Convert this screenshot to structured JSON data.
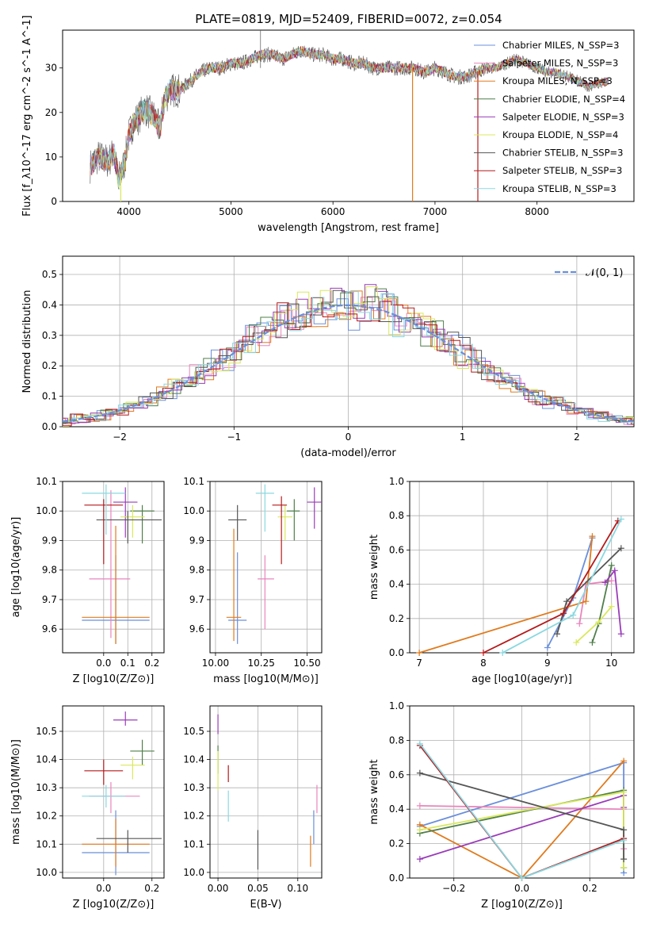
{
  "colors": [
    "#6a8fdc",
    "#e986bd",
    "#e07b1e",
    "#4f7f4a",
    "#9a3cb8",
    "#d9e85c",
    "#565656",
    "#b5191a",
    "#8ad8e0"
  ],
  "chart_data": [
    {
      "id": "spectrum",
      "type": "line",
      "title": "PLATE=0819, MJD=52409, FIBERID=0072, z=0.054",
      "xlabel": "wavelength [Angstrom, rest frame]",
      "ylabel": "Flux [f_λ10^-17 erg cm^-2 s^-1 A^-1]",
      "xlim": [
        3350,
        8950
      ],
      "ylim": [
        0,
        38.5
      ],
      "xticks": [
        "4000",
        "5000",
        "6000",
        "7000",
        "8000"
      ],
      "yticks": [
        "0",
        "10",
        "20",
        "30"
      ],
      "grid": false,
      "legend_position": "top-right",
      "legend": [
        "Chabrier MILES, N_SSP=3",
        "Salpeter MILES, N_SSP=3",
        "Kroupa MILES, N_SSP=3",
        "Chabrier ELODIE, N_SSP=4",
        "Salpeter ELODIE, N_SSP=3",
        "Kroupa ELODIE, N_SSP=4",
        "Chabrier STELIB, N_SSP=3",
        "Salpeter STELIB, N_SSP=3",
        "Kroupa STELIB, N_SSP=3"
      ],
      "envelope": {
        "x": [
          3620,
          3700,
          3800,
          3850,
          3900,
          3930,
          3960,
          4000,
          4050,
          4100,
          4150,
          4200,
          4250,
          4300,
          4350,
          4400,
          4500,
          4600,
          4700,
          4800,
          4900,
          5000,
          5100,
          5200,
          5300,
          5400,
          5500,
          5600,
          5700,
          5800,
          5900,
          6000,
          6100,
          6200,
          6300,
          6400,
          6500,
          6600,
          6700,
          6800,
          6900,
          7000,
          7100,
          7200,
          7300,
          7400,
          7500,
          7600,
          7700,
          7800,
          7900,
          8000,
          8100,
          8200,
          8300,
          8400,
          8500,
          8700
        ],
        "y": [
          8,
          10,
          9,
          11,
          5,
          7,
          9,
          15,
          18,
          19,
          21,
          20,
          19,
          16,
          23,
          25,
          25,
          27,
          29,
          30,
          30,
          31,
          31,
          32,
          33,
          33,
          32,
          33,
          34,
          33,
          33,
          32,
          32,
          31,
          31,
          30,
          30,
          30,
          30,
          30,
          29,
          30,
          29,
          28,
          28,
          29,
          30,
          30,
          31,
          32,
          31,
          30,
          29,
          29,
          28,
          27,
          26,
          27
        ]
      },
      "spikes": [
        {
          "x": 3920,
          "y_min": 0
        },
        {
          "x": 6780,
          "y_min": 0
        },
        {
          "x": 7420,
          "y_min": 0
        }
      ],
      "fluxes": {
        "range": [
          3620,
          8700
        ]
      }
    },
    {
      "id": "residuals",
      "type": "line",
      "xlabel": "(data-model)/error",
      "ylabel": "Normed distribution",
      "xlim": [
        -2.5,
        2.5
      ],
      "ylim": [
        0,
        0.56
      ],
      "xticks": [
        "−2",
        "−1",
        "0",
        "1",
        "2"
      ],
      "yticks": [
        "0.0",
        "0.1",
        "0.2",
        "0.3",
        "0.4",
        "0.5"
      ],
      "grid": true,
      "legend_position": "top-right",
      "legend": [
        "𝒩(0, 1)"
      ],
      "reference_curve": "normal(0,1)",
      "bin_width": 0.1
    },
    {
      "id": "age_vs_Z",
      "type": "scatter",
      "xlabel": "Z [log10(Z/Z⊙)]",
      "ylabel": "age [log10(age/yr)]",
      "xlim": [
        -0.17,
        0.25
      ],
      "ylim": [
        9.52,
        10.1
      ],
      "xticks": [
        "0.0",
        "0.1",
        "0.2"
      ],
      "yticks": [
        "9.6",
        "9.7",
        "9.8",
        "9.9",
        "10.0",
        "10.1"
      ],
      "grid": true,
      "points": [
        {
          "x": 0.05,
          "y": 9.63,
          "xerr": [
            0.14,
            0.14
          ],
          "yerr": [
            0.08,
            0.22
          ]
        },
        {
          "x": 0.03,
          "y": 9.77,
          "xerr": [
            0.09,
            0.08
          ],
          "yerr": [
            0.2,
            0.3
          ]
        },
        {
          "x": 0.05,
          "y": 9.64,
          "xerr": [
            0.14,
            0.14
          ],
          "yerr": [
            0.09,
            0.31
          ]
        },
        {
          "x": 0.16,
          "y": 10.0,
          "xerr": [
            0.05,
            0.05
          ],
          "yerr": [
            0.11,
            0.02
          ]
        },
        {
          "x": 0.09,
          "y": 10.03,
          "xerr": [
            0.05,
            0.05
          ],
          "yerr": [
            0.12,
            0.05
          ]
        },
        {
          "x": 0.12,
          "y": 9.98,
          "xerr": [
            0.05,
            0.05
          ],
          "yerr": [
            0.07,
            0.04
          ]
        },
        {
          "x": 0.1,
          "y": 9.97,
          "xerr": [
            0.13,
            0.14
          ],
          "yerr": [
            0.08,
            0.03
          ]
        },
        {
          "x": 0.0,
          "y": 10.02,
          "xerr": [
            0.08,
            0.08
          ],
          "yerr": [
            0.2,
            0.02
          ]
        },
        {
          "x": 0.01,
          "y": 10.06,
          "xerr": [
            0.1,
            0.08
          ],
          "yerr": [
            0.14,
            0.03
          ]
        }
      ]
    },
    {
      "id": "age_vs_mass",
      "type": "scatter",
      "xlabel": "mass [log10(M/M⊙)]",
      "ylabel": "",
      "xlim": [
        9.97,
        10.58
      ],
      "ylim": [
        9.52,
        10.1
      ],
      "xticks": [
        "10.00",
        "10.25",
        "10.50"
      ],
      "yticks": [
        "9.6",
        "9.7",
        "9.8",
        "9.9",
        "10.0",
        "10.1"
      ],
      "grid": true,
      "points": [
        {
          "x": 10.12,
          "y": 9.63,
          "xerr": [
            0.05,
            0.05
          ],
          "yerr": [
            0.08,
            0.23
          ]
        },
        {
          "x": 10.27,
          "y": 9.77,
          "xerr": [
            0.04,
            0.05
          ],
          "yerr": [
            0.17,
            0.08
          ]
        },
        {
          "x": 10.1,
          "y": 9.64,
          "xerr": [
            0.04,
            0.04
          ],
          "yerr": [
            0.08,
            0.3
          ]
        },
        {
          "x": 10.43,
          "y": 10.0,
          "xerr": [
            0.04,
            0.03
          ],
          "yerr": [
            0.1,
            0.04
          ]
        },
        {
          "x": 10.54,
          "y": 10.03,
          "xerr": [
            0.04,
            0.04
          ],
          "yerr": [
            0.09,
            0.05
          ]
        },
        {
          "x": 10.38,
          "y": 9.98,
          "xerr": [
            0.04,
            0.04
          ],
          "yerr": [
            0.08,
            0.04
          ]
        },
        {
          "x": 10.12,
          "y": 9.97,
          "xerr": [
            0.05,
            0.05
          ],
          "yerr": [
            0.07,
            0.05
          ]
        },
        {
          "x": 10.36,
          "y": 10.02,
          "xerr": [
            0.05,
            0.03
          ],
          "yerr": [
            0.2,
            0.03
          ]
        },
        {
          "x": 10.27,
          "y": 10.06,
          "xerr": [
            0.05,
            0.05
          ],
          "yerr": [
            0.13,
            0.03
          ]
        }
      ]
    },
    {
      "id": "weight_vs_age",
      "type": "line",
      "xlabel": "age [log10(age/yr)]",
      "ylabel": "mass weight",
      "xlim": [
        6.85,
        10.35
      ],
      "ylim": [
        0,
        1.0
      ],
      "xticks": [
        "7",
        "8",
        "9",
        "10"
      ],
      "yticks": [
        "0.0",
        "0.2",
        "0.4",
        "0.6",
        "0.8",
        "1.0"
      ],
      "grid": true,
      "series": [
        {
          "x": [
            9.0,
            9.4,
            9.7
          ],
          "y": [
            0.03,
            0.32,
            0.67
          ]
        },
        {
          "x": [
            9.5,
            9.6,
            10.0
          ],
          "y": [
            0.17,
            0.4,
            0.42
          ]
        },
        {
          "x": [
            7.0,
            9.6,
            9.7
          ],
          "y": [
            0.0,
            0.3,
            0.68
          ]
        },
        {
          "x": [
            9.7,
            9.8,
            10.0
          ],
          "y": [
            0.06,
            0.17,
            0.51
          ]
        },
        {
          "x": [
            9.9,
            10.05,
            10.15
          ],
          "y": [
            0.41,
            0.48,
            0.11
          ]
        },
        {
          "x": [
            9.45,
            9.8,
            10.0
          ],
          "y": [
            0.06,
            0.18,
            0.27
          ]
        },
        {
          "x": [
            9.15,
            9.3,
            10.15
          ],
          "y": [
            0.11,
            0.3,
            0.61
          ]
        },
        {
          "x": [
            8.0,
            9.25,
            10.1
          ],
          "y": [
            0.0,
            0.23,
            0.77
          ]
        },
        {
          "x": [
            8.3,
            9.4,
            10.15
          ],
          "y": [
            0.0,
            0.22,
            0.78
          ]
        }
      ]
    },
    {
      "id": "mass_vs_Z",
      "type": "scatter",
      "xlabel": "Z [log10(Z/Z⊙)]",
      "ylabel": "mass [log10(M/M⊙)]",
      "xlim": [
        -0.17,
        0.25
      ],
      "ylim": [
        9.98,
        10.59
      ],
      "xticks": [
        "0.0",
        "0.2"
      ],
      "yticks": [
        "10.0",
        "10.1",
        "10.2",
        "10.3",
        "10.4",
        "10.5"
      ],
      "grid": true,
      "points": [
        {
          "x": 0.05,
          "y": 10.07,
          "xerr": [
            0.14,
            0.14
          ],
          "yerr": [
            0.08,
            0.15
          ]
        },
        {
          "x": 0.03,
          "y": 10.27,
          "xerr": [
            0.09,
            0.12
          ],
          "yerr": [
            0.06,
            0.05
          ]
        },
        {
          "x": 0.05,
          "y": 10.1,
          "xerr": [
            0.14,
            0.14
          ],
          "yerr": [
            0.08,
            0.09
          ]
        },
        {
          "x": 0.16,
          "y": 10.43,
          "xerr": [
            0.05,
            0.05
          ],
          "yerr": [
            0.05,
            0.04
          ]
        },
        {
          "x": 0.09,
          "y": 10.54,
          "xerr": [
            0.05,
            0.05
          ],
          "yerr": [
            0.02,
            0.03
          ]
        },
        {
          "x": 0.12,
          "y": 10.38,
          "xerr": [
            0.05,
            0.05
          ],
          "yerr": [
            0.05,
            0.03
          ]
        },
        {
          "x": 0.1,
          "y": 10.12,
          "xerr": [
            0.13,
            0.14
          ],
          "yerr": [
            0.05,
            0.03
          ]
        },
        {
          "x": 0.0,
          "y": 10.36,
          "xerr": [
            0.08,
            0.08
          ],
          "yerr": [
            0.05,
            0.04
          ]
        },
        {
          "x": 0.01,
          "y": 10.27,
          "xerr": [
            0.1,
            0.08
          ],
          "yerr": [
            0.04,
            0.04
          ]
        }
      ]
    },
    {
      "id": "mass_vs_ebv",
      "type": "scatter",
      "xlabel": "E(B-V)",
      "ylabel": "",
      "xlim": [
        -0.01,
        0.13
      ],
      "ylim": [
        9.98,
        10.59
      ],
      "xticks": [
        "0.00",
        "0.05",
        "0.10"
      ],
      "yticks": [
        "10.0",
        "10.1",
        "10.2",
        "10.3",
        "10.4",
        "10.5"
      ],
      "grid": true,
      "points": [
        {
          "x": 0.12,
          "y": 10.15,
          "yerr": [
            0.05,
            0.07
          ]
        },
        {
          "x": 0.124,
          "y": 10.26,
          "yerr": [
            0.05,
            0.05
          ]
        },
        {
          "x": 0.116,
          "y": 10.08,
          "yerr": [
            0.06,
            0.05
          ]
        },
        {
          "x": 0.0,
          "y": 10.4,
          "yerr": [
            0.05,
            0.05
          ]
        },
        {
          "x": 0.0,
          "y": 10.53,
          "yerr": [
            0.04,
            0.03
          ]
        },
        {
          "x": 0.0,
          "y": 10.36,
          "yerr": [
            0.07,
            0.07
          ]
        },
        {
          "x": 0.05,
          "y": 10.08,
          "yerr": [
            0.07,
            0.07
          ]
        },
        {
          "x": 0.013,
          "y": 10.35,
          "yerr": [
            0.03,
            0.03
          ]
        },
        {
          "x": 0.013,
          "y": 10.24,
          "yerr": [
            0.06,
            0.05
          ]
        }
      ]
    },
    {
      "id": "weight_vs_Z",
      "type": "line",
      "xlabel": "Z [log10(Z/Z⊙)]",
      "ylabel": "mass weight",
      "xlim": [
        -0.33,
        0.33
      ],
      "ylim": [
        0,
        1.0
      ],
      "xticks": [
        "−0.2",
        "0.0",
        "0.2"
      ],
      "yticks": [
        "0.0",
        "0.2",
        "0.4",
        "0.6",
        "0.8",
        "1.0"
      ],
      "grid": true,
      "series": [
        {
          "x": [
            -0.3,
            0.3,
            0.3
          ],
          "y": [
            0.3,
            0.67,
            0.03
          ]
        },
        {
          "x": [
            -0.3,
            0.3,
            0.3
          ],
          "y": [
            0.42,
            0.4,
            0.17
          ]
        },
        {
          "x": [
            -0.3,
            0.0,
            0.3
          ],
          "y": [
            0.31,
            0.0,
            0.68
          ]
        },
        {
          "x": [
            -0.3,
            0.3,
            0.3
          ],
          "y": [
            0.26,
            0.51,
            0.06
          ]
        },
        {
          "x": [
            -0.3,
            0.3,
            0.3
          ],
          "y": [
            0.11,
            0.48,
            0.41
          ]
        },
        {
          "x": [
            -0.3,
            0.3,
            0.3
          ],
          "y": [
            0.28,
            0.5,
            0.06
          ]
        },
        {
          "x": [
            -0.3,
            0.3,
            0.3
          ],
          "y": [
            0.61,
            0.28,
            0.11
          ]
        },
        {
          "x": [
            -0.3,
            0.0,
            0.3
          ],
          "y": [
            0.77,
            0.0,
            0.23
          ]
        },
        {
          "x": [
            -0.3,
            0.0,
            0.3
          ],
          "y": [
            0.78,
            0.0,
            0.22
          ]
        }
      ]
    }
  ]
}
